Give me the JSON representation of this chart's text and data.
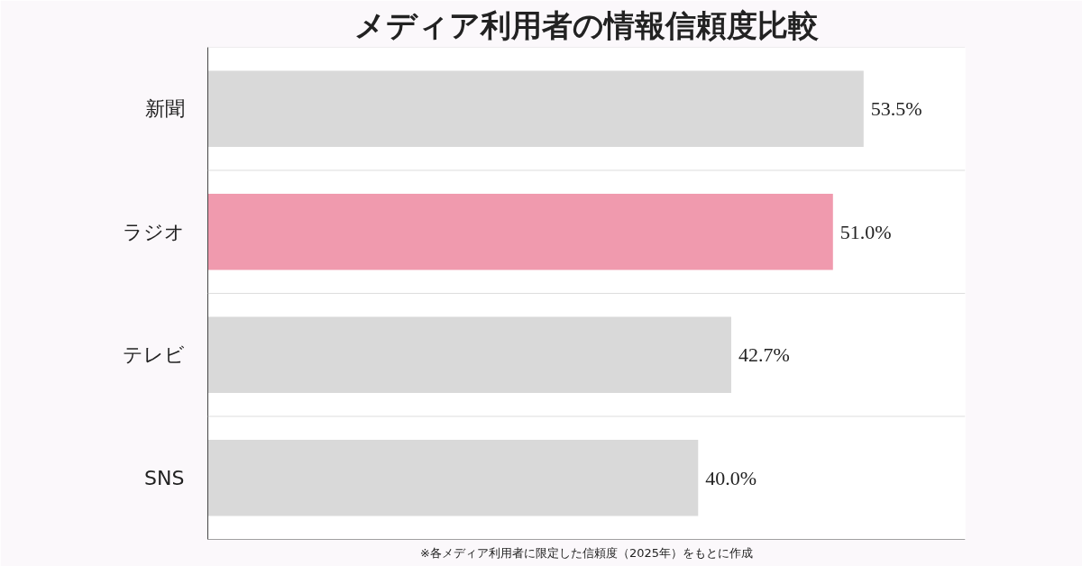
{
  "chart_data": {
    "type": "bar",
    "orientation": "horizontal",
    "title": "メディア利用者の情報信頼度比較",
    "categories": [
      "新聞",
      "ラジオ",
      "テレビ",
      "SNS"
    ],
    "values": [
      53.5,
      51.0,
      42.7,
      40.0
    ],
    "colors": [
      "#d9d9d9",
      "#f09aae",
      "#d9d9d9",
      "#d9d9d9"
    ],
    "value_labels": [
      "53.5%",
      "51.0%",
      "42.7%",
      "40.0%"
    ],
    "grid": "y",
    "annotations": [
      "※各メディア利用者に限定した信頼度（2025年）をもとに作成"
    ]
  }
}
